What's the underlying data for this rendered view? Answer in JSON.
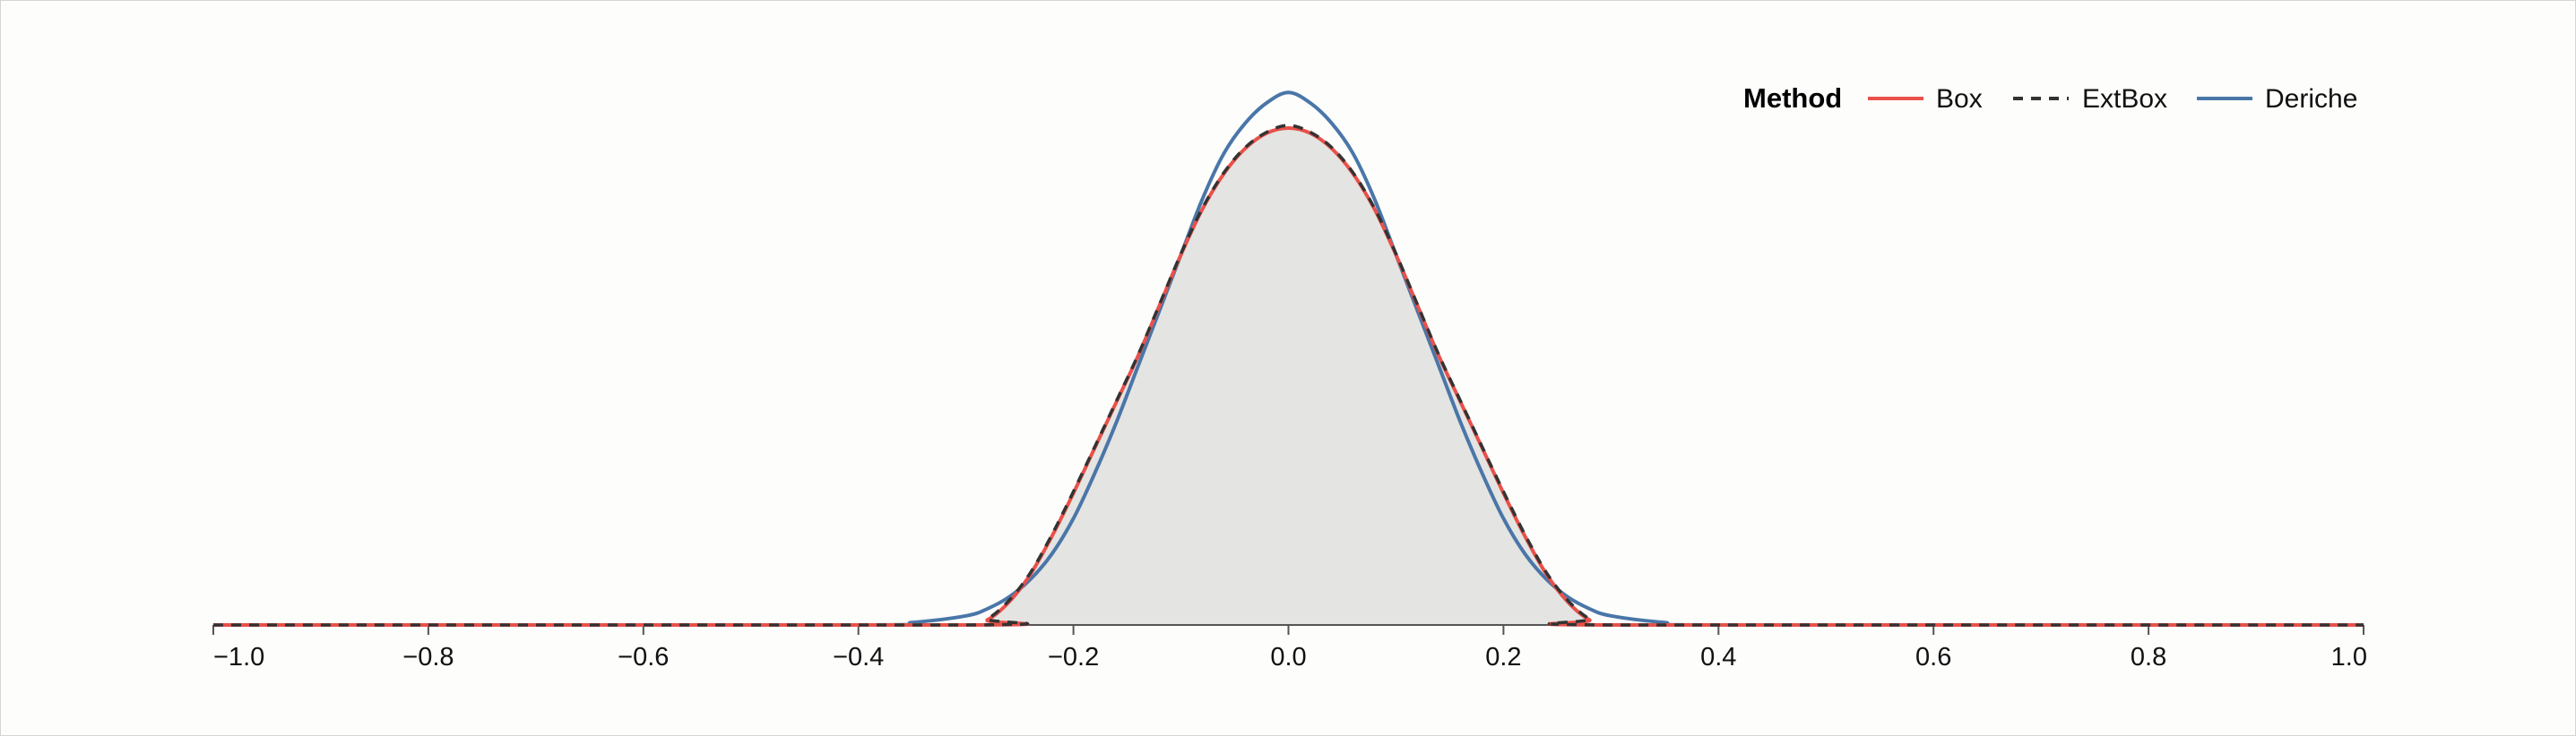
{
  "chart_data": {
    "type": "area",
    "xlim": [
      -1.0,
      1.0
    ],
    "ylim": [
      0,
      1.07
    ],
    "x_ticks": [
      -1.0,
      -0.8,
      -0.6,
      -0.4,
      -0.2,
      0.0,
      0.2,
      0.4,
      0.6,
      0.8,
      1.0
    ],
    "x_tick_labels": [
      "−1.0",
      "−0.8",
      "−0.6",
      "−0.4",
      "−0.2",
      "0.0",
      "0.2",
      "0.4",
      "0.6",
      "0.8",
      "1.0"
    ],
    "grid": false,
    "legend": {
      "title": "Method",
      "placement": "top-right",
      "entries": [
        {
          "label": "Box",
          "color": "#e8514a",
          "dash": "solid"
        },
        {
          "label": "ExtBox",
          "color": "#333333",
          "dash": "dashed"
        },
        {
          "label": "Deriche",
          "color": "#4a76a8",
          "dash": "solid"
        }
      ]
    },
    "background_area": {
      "color": "#e4e4e2",
      "follows": "Box"
    },
    "series": [
      {
        "name": "Box",
        "color": "#e8514a",
        "x": [
          -1.0,
          -0.3,
          -0.28,
          -0.26,
          -0.24,
          -0.22,
          -0.2,
          -0.18,
          -0.16,
          -0.14,
          -0.12,
          -0.1,
          -0.08,
          -0.06,
          -0.04,
          -0.02,
          0.0,
          0.02,
          0.04,
          0.06,
          0.08,
          0.1,
          0.12,
          0.14,
          0.16,
          0.18,
          0.2,
          0.22,
          0.24,
          0.26,
          0.28,
          0.3,
          1.0
        ],
        "y": [
          0.0,
          0.0,
          0.01,
          0.045,
          0.1,
          0.175,
          0.26,
          0.35,
          0.44,
          0.53,
          0.63,
          0.73,
          0.82,
          0.89,
          0.94,
          0.97,
          0.98,
          0.97,
          0.94,
          0.89,
          0.82,
          0.73,
          0.63,
          0.53,
          0.44,
          0.35,
          0.26,
          0.175,
          0.1,
          0.045,
          0.01,
          0.0,
          0.0
        ]
      },
      {
        "name": "ExtBox",
        "color": "#333333",
        "x": [
          -1.0,
          -0.3,
          -0.28,
          -0.26,
          -0.24,
          -0.22,
          -0.2,
          -0.18,
          -0.16,
          -0.14,
          -0.12,
          -0.1,
          -0.08,
          -0.06,
          -0.04,
          -0.02,
          0.0,
          0.02,
          0.04,
          0.06,
          0.08,
          0.1,
          0.12,
          0.14,
          0.16,
          0.18,
          0.2,
          0.22,
          0.24,
          0.26,
          0.28,
          0.3,
          1.0
        ],
        "y": [
          0.0,
          0.0,
          0.012,
          0.048,
          0.103,
          0.178,
          0.263,
          0.352,
          0.442,
          0.532,
          0.632,
          0.732,
          0.822,
          0.892,
          0.942,
          0.972,
          0.985,
          0.972,
          0.942,
          0.892,
          0.822,
          0.732,
          0.632,
          0.532,
          0.442,
          0.352,
          0.263,
          0.178,
          0.103,
          0.048,
          0.012,
          0.0,
          0.0
        ]
      },
      {
        "name": "Deriche",
        "color": "#4a76a8",
        "x": [
          -1.0,
          -0.4,
          -0.35,
          -0.3,
          -0.28,
          -0.26,
          -0.24,
          -0.22,
          -0.2,
          -0.18,
          -0.16,
          -0.14,
          -0.12,
          -0.1,
          -0.08,
          -0.06,
          -0.04,
          -0.02,
          0.0,
          0.02,
          0.04,
          0.06,
          0.08,
          0.1,
          0.12,
          0.14,
          0.16,
          0.18,
          0.2,
          0.22,
          0.24,
          0.26,
          0.28,
          0.3,
          0.35,
          0.4,
          1.0
        ],
        "y": [
          0.0,
          0.0,
          0.005,
          0.018,
          0.032,
          0.055,
          0.09,
          0.14,
          0.21,
          0.3,
          0.4,
          0.51,
          0.62,
          0.73,
          0.84,
          0.93,
          0.99,
          1.03,
          1.05,
          1.03,
          0.99,
          0.93,
          0.84,
          0.73,
          0.62,
          0.51,
          0.4,
          0.3,
          0.21,
          0.14,
          0.09,
          0.055,
          0.032,
          0.018,
          0.005,
          0.0,
          0.0
        ]
      }
    ]
  }
}
